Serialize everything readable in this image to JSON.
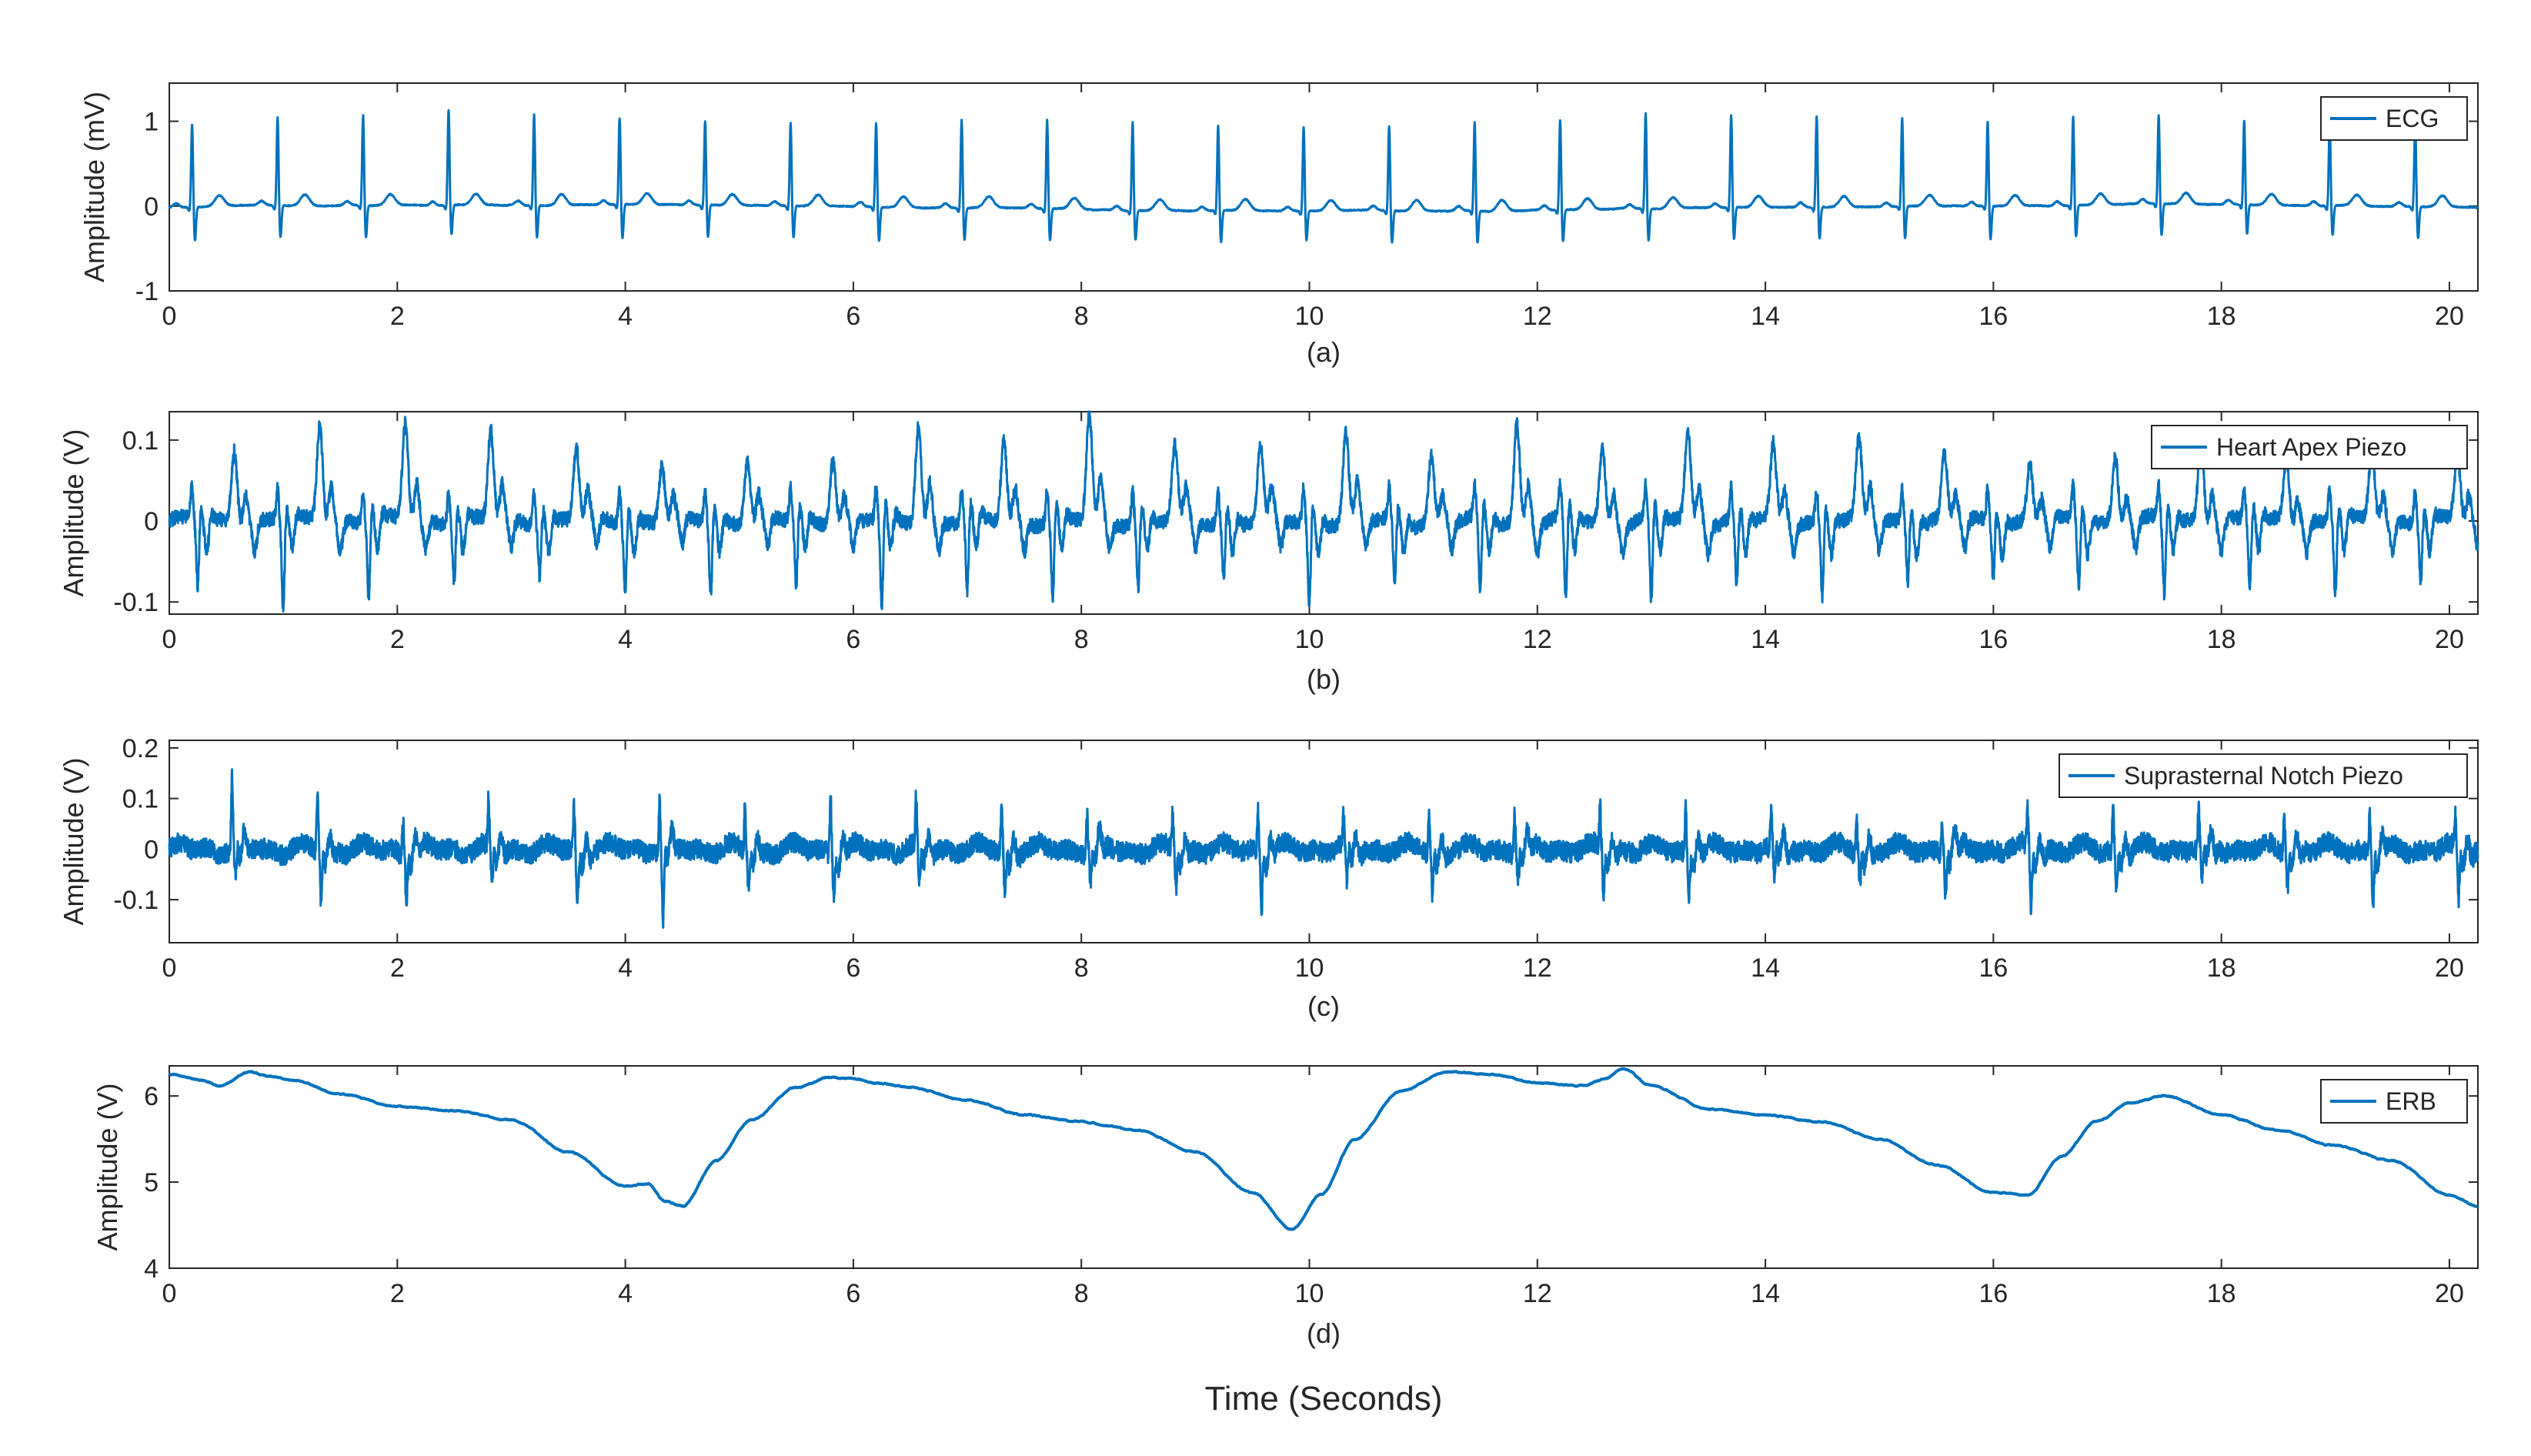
{
  "colors": {
    "series": "#0072BD",
    "axis": "#262626",
    "background": "#FFFFFF"
  },
  "global_xlabel": "Time (Seconds)",
  "chart_data": [
    {
      "type": "line",
      "id": "a",
      "panel_label": "(a)",
      "ylabel": "Amplitude (mV)",
      "legend": "ECG",
      "legend_position": "top-right",
      "xlim": [
        0,
        20.25
      ],
      "ylim": [
        -1,
        1.45
      ],
      "xticks": [
        0,
        2,
        4,
        6,
        8,
        10,
        12,
        14,
        16,
        18,
        20
      ],
      "xtick_labels": [
        "0",
        "2",
        "4",
        "6",
        "8",
        "10",
        "12",
        "14",
        "16",
        "18",
        "20"
      ],
      "yticks": [
        -1,
        0,
        1
      ],
      "ytick_labels": [
        "-1",
        "0",
        "1"
      ],
      "generator": {
        "kind": "ecg",
        "beats": [
          0.2,
          0.95,
          1.7,
          2.45,
          3.2,
          3.95,
          4.7,
          5.45,
          6.2,
          6.95,
          7.7,
          8.45,
          9.2,
          9.95,
          10.7,
          11.45,
          12.2,
          12.95,
          13.7,
          14.45,
          15.2,
          15.95,
          16.7,
          17.45,
          18.2,
          18.95,
          19.7
        ],
        "peaks": [
          0.98,
          1.05,
          1.07,
          1.13,
          1.08,
          1.03,
          1.0,
          0.98,
          1.0,
          1.05,
          1.05,
          1.05,
          1.0,
          1.0,
          1.0,
          1.05,
          1.07,
          1.13,
          1.1,
          1.08,
          1.05,
          1.0,
          1.05,
          1.05,
          1.0,
          0.98,
          1.0
        ],
        "troughs": [
          -0.4,
          -0.38,
          -0.38,
          -0.35,
          -0.38,
          -0.4,
          -0.38,
          -0.38,
          -0.4,
          -0.38,
          -0.38,
          -0.35,
          -0.38,
          -0.35,
          -0.38,
          -0.38,
          -0.38,
          -0.38,
          -0.38,
          -0.38,
          -0.38,
          -0.4,
          -0.38,
          -0.38,
          -0.35,
          -0.35,
          -0.38
        ]
      }
    },
    {
      "type": "line",
      "id": "b",
      "panel_label": "(b)",
      "ylabel": "Amplitude (V)",
      "legend": "Heart Apex Piezo",
      "legend_position": "top-right",
      "xlim": [
        0,
        20.25
      ],
      "ylim": [
        -0.115,
        0.135
      ],
      "xticks": [
        0,
        2,
        4,
        6,
        8,
        10,
        12,
        14,
        16,
        18,
        20
      ],
      "xtick_labels": [
        "0",
        "2",
        "4",
        "6",
        "8",
        "10",
        "12",
        "14",
        "16",
        "18",
        "20"
      ],
      "yticks": [
        -0.1,
        0,
        0.1
      ],
      "ytick_labels": [
        "-0.1",
        "0",
        "0.1"
      ],
      "generator": {
        "kind": "apex",
        "beats": [
          0.25,
          1.0,
          1.75,
          2.5,
          3.25,
          4.0,
          4.75,
          5.5,
          6.25,
          7.0,
          7.75,
          8.5,
          9.25,
          10.0,
          10.75,
          11.5,
          12.25,
          13.0,
          13.75,
          14.5,
          15.25,
          16.0,
          16.75,
          17.5,
          18.25,
          19.0,
          19.75
        ],
        "peaks": [
          0.09,
          0.12,
          0.12,
          0.11,
          0.09,
          0.07,
          0.08,
          0.08,
          0.12,
          0.1,
          0.13,
          0.09,
          0.09,
          0.11,
          0.08,
          0.12,
          0.09,
          0.11,
          0.09,
          0.1,
          0.08,
          0.07,
          0.08,
          0.1,
          0.08,
          0.09,
          0.08
        ],
        "troughs": [
          -0.08,
          -0.11,
          -0.09,
          -0.07,
          -0.06,
          -0.08,
          -0.09,
          -0.08,
          -0.11,
          -0.09,
          -0.1,
          -0.08,
          -0.07,
          -0.1,
          -0.08,
          -0.09,
          -0.1,
          -0.1,
          -0.08,
          -0.09,
          -0.07,
          -0.07,
          -0.08,
          -0.09,
          -0.08,
          -0.09,
          -0.07
        ]
      }
    },
    {
      "type": "line",
      "id": "c",
      "panel_label": "(c)",
      "ylabel": "Amplitude (V)",
      "legend": "Suprasternal Notch Piezo",
      "legend_position": "top-right",
      "xlim": [
        0,
        20.25
      ],
      "ylim": [
        -0.185,
        0.215
      ],
      "xticks": [
        0,
        2,
        4,
        6,
        8,
        10,
        12,
        14,
        16,
        18,
        20
      ],
      "xtick_labels": [
        "0",
        "2",
        "4",
        "6",
        "8",
        "10",
        "12",
        "14",
        "16",
        "18",
        "20"
      ],
      "yticks": [
        -0.1,
        0,
        0.1,
        0.2
      ],
      "ytick_labels": [
        "-0.1",
        "0",
        "0.1",
        "0.2"
      ],
      "generator": {
        "kind": "notch",
        "beats": [
          0.55,
          1.3,
          2.05,
          2.8,
          3.55,
          4.3,
          5.05,
          5.8,
          6.55,
          7.3,
          8.05,
          8.8,
          9.55,
          10.3,
          11.05,
          11.8,
          12.55,
          13.3,
          14.05,
          14.8,
          15.55,
          16.3,
          17.05,
          17.8,
          18.55,
          19.3,
          20.05
        ],
        "peaks": [
          0.14,
          0.11,
          0.07,
          0.09,
          0.08,
          0.1,
          0.09,
          0.11,
          0.1,
          0.08,
          0.07,
          0.07,
          0.08,
          0.06,
          0.07,
          0.07,
          0.08,
          0.08,
          0.07,
          0.06,
          0.06,
          0.07,
          0.08,
          0.07,
          0.07,
          0.08,
          0.06
        ],
        "troughs": [
          -0.08,
          -0.11,
          -0.11,
          -0.1,
          -0.13,
          -0.16,
          -0.09,
          -0.1,
          -0.1,
          -0.1,
          -0.08,
          -0.09,
          -0.13,
          -0.09,
          -0.1,
          -0.08,
          -0.1,
          -0.1,
          -0.09,
          -0.08,
          -0.1,
          -0.13,
          -0.09,
          -0.08,
          -0.08,
          -0.12,
          -0.12
        ]
      }
    },
    {
      "type": "line",
      "id": "d",
      "panel_label": "(d)",
      "ylabel": "Amplitude (V)",
      "legend": "ERB",
      "legend_position": "top-right",
      "xlim": [
        0,
        20.25
      ],
      "ylim": [
        4,
        6.35
      ],
      "xticks": [
        0,
        2,
        4,
        6,
        8,
        10,
        12,
        14,
        16,
        18,
        20
      ],
      "xtick_labels": [
        "0",
        "2",
        "4",
        "6",
        "8",
        "10",
        "12",
        "14",
        "16",
        "18",
        "20"
      ],
      "yticks": [
        4,
        5,
        6
      ],
      "ytick_labels": [
        "4",
        "5",
        "6"
      ],
      "generator": {
        "kind": "erb",
        "x": [
          0,
          0.3,
          0.45,
          0.7,
          0.9,
          1.1,
          1.5,
          2.0,
          2.5,
          3.0,
          3.5,
          4.0,
          4.2,
          4.35,
          4.5,
          4.8,
          5.1,
          5.5,
          5.8,
          6.0,
          6.2,
          6.5,
          7.0,
          7.5,
          8.0,
          8.5,
          9.0,
          9.5,
          9.85,
          10.1,
          10.4,
          10.8,
          11.2,
          11.6,
          12.0,
          12.4,
          12.6,
          12.75,
          13.0,
          13.5,
          14.0,
          14.5,
          15.0,
          15.5,
          16.0,
          16.3,
          16.6,
          16.9,
          17.2,
          17.5,
          18.0,
          18.5,
          19.0,
          19.5,
          20.0,
          20.25
        ],
        "y": [
          6.25,
          6.18,
          6.12,
          6.28,
          6.22,
          6.18,
          6.02,
          5.88,
          5.83,
          5.72,
          5.35,
          4.95,
          4.98,
          4.78,
          4.72,
          5.25,
          5.72,
          6.1,
          6.22,
          6.2,
          6.15,
          6.1,
          5.95,
          5.78,
          5.7,
          5.6,
          5.35,
          4.88,
          4.45,
          4.85,
          5.5,
          6.05,
          6.28,
          6.25,
          6.15,
          6.12,
          6.2,
          6.32,
          6.12,
          5.85,
          5.78,
          5.7,
          5.5,
          5.2,
          4.88,
          4.85,
          5.3,
          5.7,
          5.92,
          6.0,
          5.78,
          5.6,
          5.42,
          5.25,
          4.85,
          4.72
        ]
      }
    }
  ]
}
